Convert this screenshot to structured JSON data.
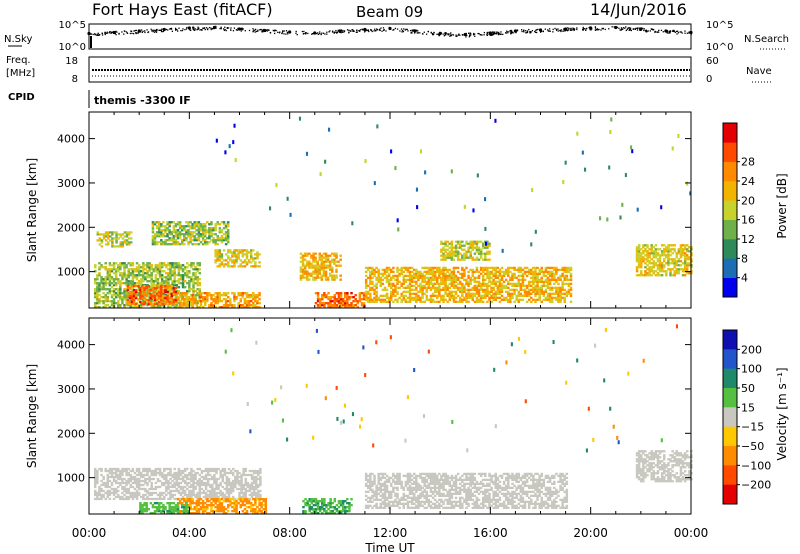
{
  "header": {
    "station": "Fort Hays East (fitACF)",
    "beam": "Beam 09",
    "date": "14/Jun/2016"
  },
  "strip_labels": {
    "nsky": "N.Sky",
    "freq_line1": "Freq.",
    "freq_line2": "[MHz]",
    "cpid": "CPID",
    "nsearch": "N.Search",
    "nave": "Nave"
  },
  "cpid_value": "themis -3300 IF",
  "noise_axis": {
    "left_ticks": [
      "10^5",
      "10^0"
    ],
    "right_ticks": [
      "10^5",
      "10^0"
    ]
  },
  "freq_axis": {
    "left_ticks": [
      "18",
      "8"
    ],
    "right_ticks": [
      "60",
      "0"
    ]
  },
  "time_axis": {
    "label": "Time UT",
    "ticks": [
      "00:00",
      "04:00",
      "08:00",
      "12:00",
      "16:00",
      "20:00",
      "00:00"
    ]
  },
  "range_axis": {
    "label": "Slant Range [km]",
    "ticks": [
      "1000",
      "2000",
      "3000",
      "4000"
    ]
  },
  "power_colorbar": {
    "label": "Power [dB]",
    "ticks": [
      "4",
      "8",
      "12",
      "16",
      "20",
      "24",
      "28"
    ],
    "colors": [
      "#0000ee",
      "#1c6eb4",
      "#2f8a5a",
      "#6eb04a",
      "#c8d22c",
      "#f2b400",
      "#ff8a00",
      "#ff4a00",
      "#e40000"
    ]
  },
  "velocity_colorbar": {
    "label": "Velocity [m s⁻¹]",
    "ticks": [
      "200",
      "100",
      "50",
      "15",
      "−15",
      "−50",
      "−100",
      "−200"
    ],
    "colors": [
      "#1010b0",
      "#2255cc",
      "#1f8a6a",
      "#55c040",
      "#c8c8c0",
      "#ffc800",
      "#ff8c00",
      "#ff4a00",
      "#e40000"
    ]
  },
  "chart_data": [
    {
      "type": "line",
      "title": "N.Sky / N.Search",
      "x_range_hours": [
        0,
        24
      ],
      "ylim_log10": [
        0,
        5
      ],
      "series": [
        {
          "x": [
            0,
            1,
            2,
            3,
            4,
            5,
            6,
            7,
            8,
            9,
            10,
            11,
            12,
            13,
            14,
            15,
            16,
            17,
            18,
            19,
            20,
            21,
            22,
            23,
            24
          ],
          "y_log10": [
            3.1,
            3.3,
            3.6,
            3.9,
            4.2,
            4.3,
            4.0,
            3.7,
            3.4,
            3.2,
            3.6,
            3.9,
            4.1,
            3.6,
            3.1,
            2.9,
            3.2,
            3.6,
            3.8,
            4.0,
            4.2,
            4.3,
            4.0,
            3.6,
            3.3
          ]
        }
      ]
    },
    {
      "type": "line",
      "title": "Freq / Nave",
      "x_range_hours": [
        0,
        24
      ],
      "ylim": [
        8,
        18
      ],
      "series": [
        {
          "name": "Freq.",
          "x": [
            0,
            24
          ],
          "y": [
            10.6,
            10.6
          ]
        }
      ]
    },
    {
      "type": "heatmap",
      "title": "Power [dB]",
      "x_unit": "hours UT",
      "y_unit": "km",
      "xlim": [
        0,
        24
      ],
      "ylim": [
        180,
        4600
      ],
      "echo_regions": [
        {
          "t0": 0.2,
          "t1": 4.4,
          "r0": 180,
          "r1": 1200,
          "power": 16
        },
        {
          "t0": 1.5,
          "t1": 3.5,
          "r0": 250,
          "r1": 700,
          "power": 28
        },
        {
          "t0": 3.5,
          "t1": 6.8,
          "r0": 180,
          "r1": 500,
          "power": 24
        },
        {
          "t0": 0.3,
          "t1": 1.7,
          "r0": 1550,
          "r1": 1900,
          "power": 18
        },
        {
          "t0": 2.5,
          "t1": 5.5,
          "r0": 1600,
          "r1": 2100,
          "power": 16
        },
        {
          "t0": 5.0,
          "t1": 6.8,
          "r0": 1100,
          "r1": 1500,
          "power": 20
        },
        {
          "t0": 8.4,
          "t1": 10.0,
          "r0": 800,
          "r1": 1400,
          "power": 22
        },
        {
          "t0": 9.0,
          "t1": 11.0,
          "r0": 180,
          "r1": 500,
          "power": 28
        },
        {
          "t0": 11.0,
          "t1": 19.2,
          "r0": 300,
          "r1": 1100,
          "power": 22
        },
        {
          "t0": 14.0,
          "t1": 16.0,
          "r0": 1250,
          "r1": 1700,
          "power": 18
        },
        {
          "t0": 21.8,
          "t1": 24.0,
          "r0": 900,
          "r1": 1600,
          "power": 20
        }
      ]
    },
    {
      "type": "heatmap",
      "title": "Velocity [m s⁻¹]",
      "x_unit": "hours UT",
      "y_unit": "km",
      "xlim": [
        0,
        24
      ],
      "ylim": [
        180,
        4600
      ],
      "echo_regions": [
        {
          "t0": 0.2,
          "t1": 6.8,
          "r0": 500,
          "r1": 1200,
          "velocity": 0
        },
        {
          "t0": 3.5,
          "t1": 7.0,
          "r0": 180,
          "r1": 500,
          "velocity": -60
        },
        {
          "t0": 2.0,
          "t1": 4.0,
          "r0": 180,
          "r1": 450,
          "velocity": 40
        },
        {
          "t0": 8.5,
          "t1": 10.5,
          "r0": 180,
          "r1": 500,
          "velocity": 45
        },
        {
          "t0": 11.0,
          "t1": 19.0,
          "r0": 300,
          "r1": 1100,
          "velocity": 0
        },
        {
          "t0": 21.8,
          "t1": 24.0,
          "r0": 900,
          "r1": 1600,
          "velocity": 0
        }
      ]
    }
  ]
}
